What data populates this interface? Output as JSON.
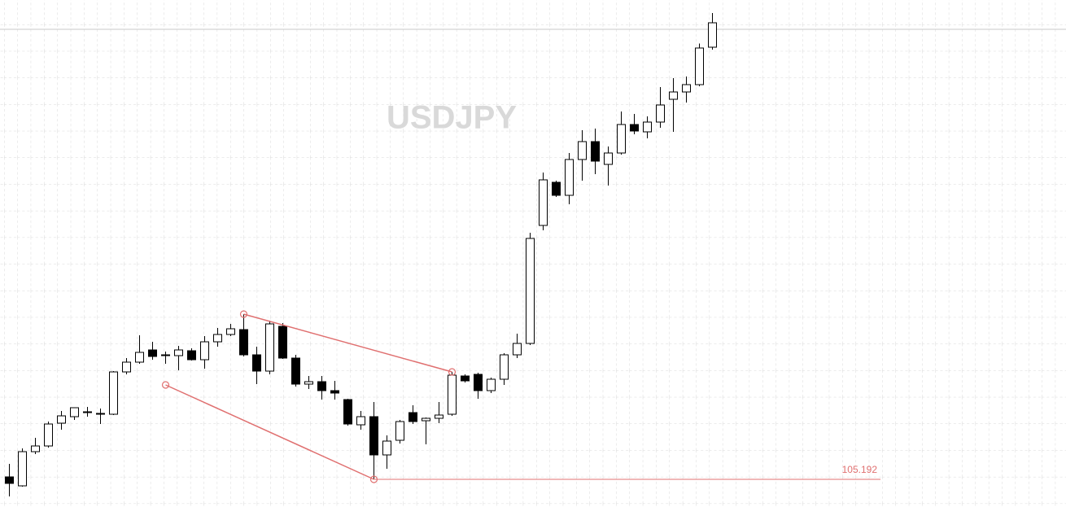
{
  "chart_data": {
    "type": "candlestick",
    "title": "USDJPY",
    "ylim": [
      104.512,
      116.972
    ],
    "grid": true,
    "up_color": "#ffffff",
    "down_color": "#000000",
    "open": [
      105.252,
      105.032,
      105.872,
      106.012,
      106.572,
      106.732,
      106.832,
      106.792,
      106.792,
      107.832,
      108.072,
      108.372,
      108.232,
      108.232,
      108.352,
      108.132,
      108.572,
      108.752,
      108.872,
      108.252,
      107.852,
      108.952,
      108.172,
      107.532,
      107.592,
      107.372,
      107.152,
      106.532,
      106.732,
      105.792,
      106.152,
      106.832,
      106.632,
      106.692,
      106.792,
      107.732,
      107.772,
      107.372,
      107.652,
      108.252,
      108.532,
      111.432,
      112.492,
      112.172,
      113.052,
      113.492,
      112.932,
      113.212,
      113.912,
      113.732,
      113.972,
      114.532,
      114.712,
      114.892,
      115.812
    ],
    "high": [
      105.572,
      105.952,
      106.212,
      106.612,
      106.872,
      106.932,
      106.972,
      106.932,
      107.852,
      108.172,
      108.732,
      108.572,
      108.332,
      108.472,
      108.412,
      108.712,
      108.912,
      109.012,
      109.252,
      108.452,
      109.092,
      109.032,
      108.252,
      107.732,
      107.732,
      107.612,
      107.172,
      106.872,
      107.092,
      106.272,
      106.652,
      107.012,
      106.712,
      107.092,
      107.832,
      107.772,
      107.812,
      107.692,
      108.292,
      108.772,
      111.252,
      112.732,
      112.532,
      113.212,
      113.772,
      113.812,
      113.372,
      114.232,
      114.172,
      114.112,
      114.832,
      115.052,
      115.092,
      115.902,
      116.652
    ],
    "low": [
      104.772,
      105.012,
      105.812,
      105.972,
      106.412,
      106.652,
      106.732,
      106.552,
      106.772,
      107.772,
      108.032,
      108.132,
      108.032,
      107.872,
      108.112,
      107.912,
      108.452,
      108.712,
      108.212,
      107.532,
      107.772,
      108.152,
      107.472,
      107.412,
      107.152,
      107.152,
      106.512,
      106.412,
      105.192,
      105.452,
      106.072,
      106.552,
      106.052,
      106.572,
      106.752,
      107.572,
      107.172,
      107.312,
      107.512,
      108.172,
      108.492,
      111.312,
      112.132,
      111.952,
      112.532,
      112.692,
      112.412,
      113.172,
      113.672,
      113.572,
      113.832,
      113.732,
      114.452,
      114.852,
      115.752
    ],
    "close": [
      105.092,
      105.872,
      106.012,
      106.552,
      106.752,
      106.952,
      106.852,
      106.812,
      107.832,
      108.072,
      108.312,
      108.212,
      108.252,
      108.372,
      108.132,
      108.572,
      108.752,
      108.892,
      108.252,
      107.852,
      109.012,
      108.172,
      107.532,
      107.592,
      107.372,
      107.312,
      106.552,
      106.732,
      105.792,
      106.132,
      106.612,
      106.612,
      106.692,
      106.772,
      107.752,
      107.612,
      107.372,
      107.652,
      108.252,
      108.532,
      111.112,
      112.552,
      112.172,
      113.052,
      113.492,
      113.012,
      113.212,
      113.912,
      113.752,
      113.972,
      114.392,
      114.712,
      114.892,
      115.792,
      116.412
    ],
    "price_line": {
      "value": 116.252,
      "color": "#c8c8c8"
    },
    "level": 105.192,
    "level_color": "#e07070",
    "trendlines": [
      {
        "color": "#e07070",
        "points": [
          {
            "index": 18,
            "value": 109.252
          },
          {
            "index": 34,
            "value": 107.832
          }
        ]
      },
      {
        "color": "#e07070",
        "points": [
          {
            "index": 12,
            "value": 107.512
          },
          {
            "index": 28,
            "value": 105.192
          }
        ]
      }
    ]
  }
}
